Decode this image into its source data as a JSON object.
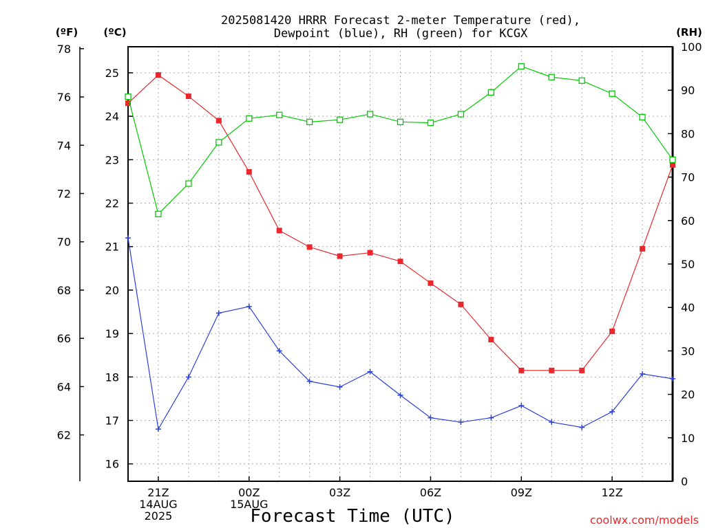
{
  "chart_data": {
    "type": "line",
    "title": "2025081420 HRRR Forecast 2-meter Temperature (red),\nDewpoint (blue), RH (green) for KCGX",
    "xlabel": "Forecast Time (UTC)",
    "left_units": [
      "(ºF)",
      "(ºC)"
    ],
    "right_units": "(RH)",
    "credit": "coolwx.com/models",
    "x_ticks": [
      {
        "hour": 1,
        "lines": [
          "21Z",
          "14AUG",
          "2025"
        ]
      },
      {
        "hour": 4,
        "lines": [
          "00Z",
          "15AUG"
        ]
      },
      {
        "hour": 7,
        "lines": [
          "03Z"
        ]
      },
      {
        "hour": 10,
        "lines": [
          "06Z"
        ]
      },
      {
        "hour": 13,
        "lines": [
          "09Z"
        ]
      },
      {
        "hour": 16,
        "lines": [
          "12Z"
        ]
      }
    ],
    "x_range": [
      0,
      18
    ],
    "celsius_axis": {
      "range": [
        15.6,
        25.6
      ],
      "ticks": [
        16,
        17,
        18,
        19,
        20,
        21,
        22,
        23,
        24,
        25
      ]
    },
    "fahrenheit_axis": {
      "range": [
        60.08,
        78.08
      ],
      "ticks": [
        62,
        64,
        66,
        68,
        70,
        72,
        74,
        76,
        78
      ]
    },
    "rh_axis": {
      "range": [
        0,
        100
      ],
      "ticks": [
        0,
        10,
        20,
        30,
        40,
        50,
        60,
        70,
        80,
        90,
        100
      ]
    },
    "series": [
      {
        "name": "Temperature",
        "axis": "celsius",
        "color": "#e8282d",
        "marker": "filled-square",
        "x": [
          0,
          1,
          2,
          3,
          4,
          5,
          6,
          7,
          8,
          9,
          10,
          11,
          12,
          13,
          14,
          15,
          16,
          17,
          18
        ],
        "y": [
          24.3,
          24.95,
          24.46,
          23.9,
          22.72,
          21.37,
          20.99,
          20.78,
          20.86,
          20.66,
          20.16,
          19.67,
          18.86,
          18.15,
          18.15,
          18.15,
          19.05,
          20.95,
          22.88
        ]
      },
      {
        "name": "Dewpoint",
        "axis": "celsius",
        "color": "#2a3fe0",
        "marker": "plus",
        "x": [
          0,
          1,
          2,
          3,
          4,
          5,
          6,
          7,
          8,
          9,
          10,
          11,
          12,
          13,
          14,
          15,
          16,
          17,
          18
        ],
        "y": [
          21.2,
          16.8,
          18.0,
          19.47,
          19.62,
          18.6,
          17.9,
          17.77,
          18.12,
          17.58,
          17.06,
          16.96,
          17.06,
          17.34,
          16.96,
          16.84,
          17.2,
          18.07,
          17.96
        ]
      },
      {
        "name": "RH",
        "axis": "rh",
        "color": "#00cc00",
        "marker": "open-square",
        "x": [
          0,
          1,
          2,
          3,
          4,
          5,
          6,
          7,
          8,
          9,
          10,
          11,
          12,
          13,
          14,
          15,
          16,
          17,
          18
        ],
        "y": [
          88.5,
          61.5,
          68.5,
          78.0,
          83.5,
          84.3,
          82.7,
          83.2,
          84.5,
          82.7,
          82.5,
          84.5,
          89.5,
          95.5,
          93.0,
          92.2,
          89.2,
          83.8,
          74.0
        ]
      }
    ]
  }
}
